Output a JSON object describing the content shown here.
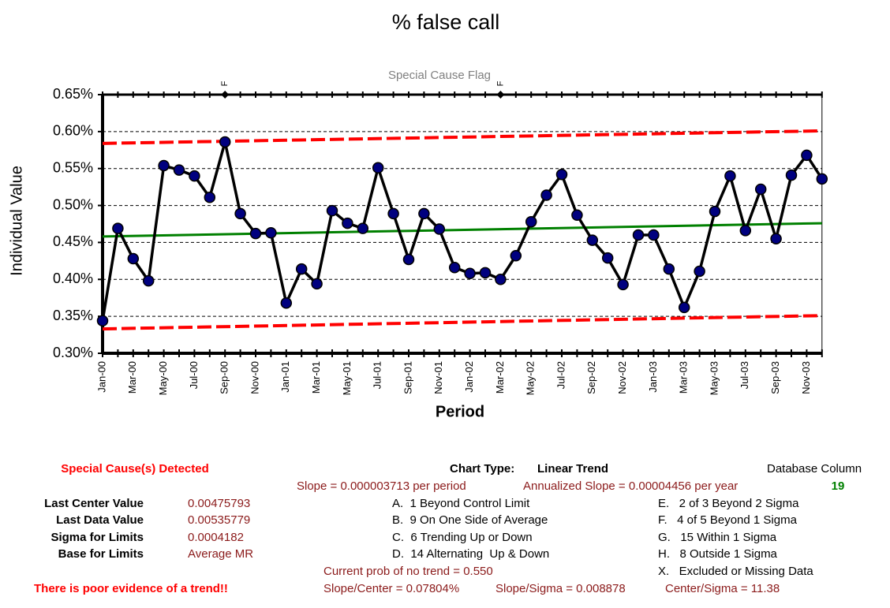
{
  "chart_data": {
    "type": "line",
    "title": "% false call",
    "flag_title": "Special Cause Flag",
    "ylabel": "Individual Value",
    "xlabel": "Period",
    "categories": [
      "Jan-00",
      null,
      "Mar-00",
      null,
      "May-00",
      null,
      "Jul-00",
      null,
      "Sep-00",
      null,
      "Nov-00",
      null,
      "Jan-01",
      null,
      "Mar-01",
      null,
      "May-01",
      null,
      "Jul-01",
      null,
      "Sep-01",
      null,
      "Nov-01",
      null,
      "Jan-02",
      null,
      "Mar-02",
      null,
      "May-02",
      null,
      "Jul-02",
      null,
      "Sep-02",
      null,
      "Nov-02",
      null,
      "Jan-03",
      null,
      "Mar-03",
      null,
      "May-03",
      null,
      "Jul-03",
      null,
      "Sep-03",
      null,
      "Nov-03",
      null
    ],
    "values": [
      0.344,
      0.469,
      0.428,
      0.398,
      0.554,
      0.548,
      0.54,
      0.511,
      0.586,
      0.489,
      0.462,
      0.463,
      0.368,
      0.414,
      0.394,
      0.493,
      0.476,
      0.469,
      0.551,
      0.489,
      0.427,
      0.489,
      0.468,
      0.416,
      0.408,
      0.409,
      0.4,
      0.432,
      0.478,
      0.514,
      0.542,
      0.487,
      0.453,
      0.429,
      0.393,
      0.46,
      0.46,
      0.414,
      0.362,
      0.411,
      0.492,
      0.54,
      0.466,
      0.522,
      0.455,
      0.541,
      0.568,
      0.536
    ],
    "flags": [
      null,
      null,
      null,
      null,
      null,
      null,
      null,
      null,
      "F",
      null,
      null,
      null,
      null,
      null,
      null,
      null,
      null,
      null,
      null,
      null,
      null,
      null,
      null,
      null,
      null,
      null,
      "F",
      null,
      null,
      null,
      null,
      null,
      null,
      null,
      null,
      null,
      null,
      null,
      null,
      null,
      null,
      null,
      null,
      null,
      null,
      null,
      null,
      null
    ],
    "color": "#000000",
    "marker_color": "#00007f",
    "center_line": [
      0.458,
      0.476
    ],
    "center_color": "#008000",
    "upper_limit": [
      0.584,
      0.601
    ],
    "lower_limit": [
      0.333,
      0.351
    ],
    "limit_color": "#ff0000",
    "ylim": [
      0.3,
      0.65
    ],
    "yticks": [
      {
        "value": 0.3,
        "label": "0.30%"
      },
      {
        "value": 0.35,
        "label": "0.35%"
      },
      {
        "value": 0.4,
        "label": "0.40%"
      },
      {
        "value": 0.45,
        "label": "0.45%"
      },
      {
        "value": 0.5,
        "label": "0.50%"
      },
      {
        "value": 0.55,
        "label": "0.55%"
      },
      {
        "value": 0.6,
        "label": "0.60%"
      },
      {
        "value": 0.65,
        "label": "0.65%"
      }
    ],
    "grid": true
  },
  "panel": {
    "detected": "Special Cause(s) Detected",
    "chart_type_label": "Chart Type:",
    "chart_type": "Linear Trend",
    "db_column_label": "Database Column",
    "db_column": "19",
    "slope": "Slope = 0.000003713 per period",
    "annualized": "Annualized Slope = 0.00004456 per year",
    "stats": [
      [
        "Last Center Value",
        "0.00475793"
      ],
      [
        "Last Data Value",
        "0.00535779"
      ],
      [
        "Sigma for Limits",
        "0.0004182"
      ],
      [
        "Base for Limits",
        "Average MR"
      ]
    ],
    "rules_left": [
      "A.  1 Beyond Control Limit",
      "B.  9 On One Side of Average",
      "C.  6 Trending Up or Down",
      "D.  14 Alternating  Up & Down"
    ],
    "rules_right": [
      "E.   2 of 3 Beyond 2 Sigma",
      "F.   4 of 5 Beyond 1 Sigma",
      "G.   15 Within 1 Sigma",
      "H.   8 Outside 1 Sigma",
      "X.   Excluded or Missing Data"
    ],
    "prob": "Current prob of no trend = 0.550",
    "evidence": "There is poor evidence of a trend!!",
    "slope_center": "Slope/Center = 0.07804%",
    "slope_sigma": "Slope/Sigma = 0.008878",
    "center_sigma": "Center/Sigma = 11.38"
  }
}
